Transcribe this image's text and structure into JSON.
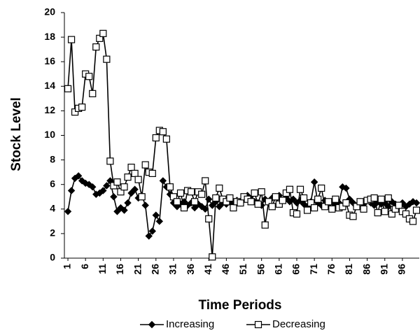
{
  "chart_data": {
    "type": "line",
    "x_label": "Time Periods",
    "y_label": "Stock Level",
    "x": [
      1,
      2,
      3,
      4,
      5,
      6,
      7,
      8,
      9,
      10,
      11,
      12,
      13,
      14,
      15,
      16,
      17,
      18,
      19,
      20,
      21,
      22,
      23,
      24,
      25,
      26,
      27,
      28,
      29,
      30,
      31,
      32,
      33,
      34,
      35,
      36,
      37,
      38,
      39,
      40,
      41,
      42,
      43,
      44,
      45,
      46,
      47,
      48,
      49,
      50,
      51,
      52,
      53,
      54,
      55,
      56,
      57,
      58,
      59,
      60,
      61,
      62,
      63,
      64,
      65,
      66,
      67,
      68,
      69,
      70,
      71,
      72,
      73,
      74,
      75,
      76,
      77,
      78,
      79,
      80,
      81,
      82,
      83,
      84,
      85,
      86,
      87,
      88,
      89,
      90,
      91,
      92,
      93,
      94,
      95,
      96,
      97,
      98,
      99,
      100
    ],
    "series": [
      {
        "name": "Increasing",
        "color": "#000000",
        "marker": "diamond",
        "values": [
          3.8,
          5.5,
          6.5,
          6.7,
          6.3,
          6.1,
          6.0,
          5.8,
          5.2,
          5.3,
          5.5,
          5.9,
          6.3,
          5.0,
          3.8,
          4.1,
          3.9,
          4.5,
          5.3,
          5.6,
          4.9,
          5.1,
          4.3,
          1.8,
          2.2,
          3.5,
          3.0,
          6.3,
          5.8,
          5.2,
          4.5,
          4.2,
          4.4,
          4.6,
          4.3,
          4.5,
          4.1,
          4.4,
          4.2,
          4.0,
          4.8,
          4.3,
          4.6,
          4.2,
          4.5,
          4.4,
          4.6,
          4.3,
          4.7,
          4.5,
          4.9,
          5.1,
          4.8,
          4.6,
          4.5,
          4.3,
          4.8,
          4.5,
          4.9,
          5.0,
          5.1,
          4.7,
          4.9,
          4.6,
          4.8,
          4.5,
          4.7,
          4.4,
          4.2,
          4.6,
          6.2,
          4.5,
          4.3,
          4.7,
          4.4,
          4.6,
          4.3,
          4.5,
          5.8,
          5.7,
          4.8,
          4.5,
          4.2,
          4.6,
          4.4,
          4.7,
          4.5,
          4.3,
          4.6,
          4.4,
          4.5,
          4.2,
          4.6,
          4.4,
          4.3,
          4.5,
          4.2,
          4.4,
          4.6,
          4.5
        ]
      },
      {
        "name": "Decreasing",
        "color": "#000000",
        "marker": "square",
        "values": [
          13.8,
          17.8,
          11.9,
          12.2,
          12.3,
          15.0,
          14.8,
          13.4,
          17.2,
          17.9,
          18.3,
          16.2,
          7.9,
          5.9,
          6.2,
          5.4,
          5.8,
          6.6,
          7.4,
          6.9,
          6.4,
          5.0,
          7.6,
          7.0,
          6.9,
          9.8,
          10.4,
          10.3,
          9.7,
          5.8,
          5.0,
          4.6,
          5.3,
          4.1,
          5.5,
          5.4,
          4.6,
          5.4,
          5.2,
          6.3,
          3.2,
          0.1,
          4.9,
          5.7,
          4.8,
          4.6,
          4.9,
          4.1,
          4.6,
          4.5,
          5.0,
          4.8,
          4.6,
          5.3,
          4.4,
          5.4,
          2.7,
          4.6,
          4.2,
          5.0,
          4.4,
          4.7,
          5.3,
          5.6,
          3.7,
          3.6,
          5.6,
          4.9,
          3.9,
          4.5,
          4.1,
          4.8,
          5.7,
          4.2,
          4.6,
          4.0,
          4.8,
          4.1,
          4.2,
          4.5,
          3.5,
          3.4,
          4.2,
          4.6,
          4.0,
          4.7,
          4.8,
          4.9,
          3.7,
          4.8,
          3.8,
          4.9,
          3.6,
          4.0,
          4.3,
          3.8,
          3.6,
          3.2,
          3.0,
          3.9
        ]
      }
    ],
    "xlim": [
      0,
      100
    ],
    "ylim": [
      0,
      20
    ],
    "xticks": [
      1,
      6,
      11,
      16,
      21,
      26,
      31,
      36,
      41,
      46,
      51,
      56,
      61,
      66,
      71,
      76,
      81,
      86,
      91,
      96
    ],
    "yticks": [
      0,
      2,
      4,
      6,
      8,
      10,
      12,
      14,
      16,
      18,
      20
    ],
    "grid": false,
    "legend": "bottom"
  }
}
